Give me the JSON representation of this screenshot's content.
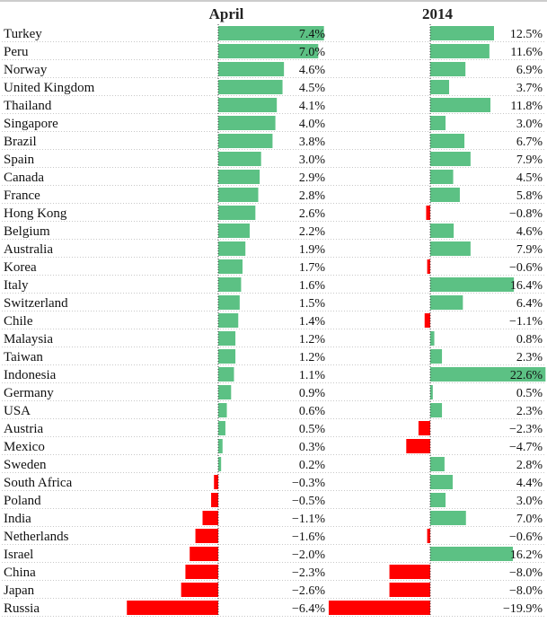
{
  "chart_data": {
    "type": "bar",
    "orientation": "horizontal",
    "panels": [
      "April",
      "2014"
    ],
    "categories": [
      "Turkey",
      "Peru",
      "Norway",
      "United Kingdom",
      "Thailand",
      "Singapore",
      "Brazil",
      "Spain",
      "Canada",
      "France",
      "Hong Kong",
      "Belgium",
      "Australia",
      "Korea",
      "Italy",
      "Switzerland",
      "Chile",
      "Malaysia",
      "Taiwan",
      "Indonesia",
      "Germany",
      "USA",
      "Austria",
      "Mexico",
      "Sweden",
      "South Africa",
      "Poland",
      "India",
      "Netherlands",
      "Israel",
      "China",
      "Japan",
      "Russia"
    ],
    "series": [
      {
        "name": "April",
        "values": [
          7.4,
          7.0,
          4.6,
          4.5,
          4.1,
          4.0,
          3.8,
          3.0,
          2.9,
          2.8,
          2.6,
          2.2,
          1.9,
          1.7,
          1.6,
          1.5,
          1.4,
          1.2,
          1.2,
          1.1,
          0.9,
          0.6,
          0.5,
          0.3,
          0.2,
          -0.3,
          -0.5,
          -1.1,
          -1.6,
          -2.0,
          -2.3,
          -2.6,
          -6.4
        ],
        "labels": [
          "7.4%",
          "7.0%",
          "4.6%",
          "4.5%",
          "4.1%",
          "4.0%",
          "3.8%",
          "3.0%",
          "2.9%",
          "2.8%",
          "2.6%",
          "2.2%",
          "1.9%",
          "1.7%",
          "1.6%",
          "1.5%",
          "1.4%",
          "1.2%",
          "1.2%",
          "1.1%",
          "0.9%",
          "0.6%",
          "0.5%",
          "0.3%",
          "0.2%",
          "−0.3%",
          "−0.5%",
          "−1.1%",
          "−1.6%",
          "−2.0%",
          "−2.3%",
          "−2.6%",
          "−6.4%"
        ]
      },
      {
        "name": "2014",
        "values": [
          12.5,
          11.6,
          6.9,
          3.7,
          11.8,
          3.0,
          6.7,
          7.9,
          4.5,
          5.8,
          -0.8,
          4.6,
          7.9,
          -0.6,
          16.4,
          6.4,
          -1.1,
          0.8,
          2.3,
          22.6,
          0.5,
          2.3,
          -2.3,
          -4.7,
          2.8,
          4.4,
          3.0,
          7.0,
          -0.6,
          16.2,
          -8.0,
          -8.0,
          -19.9
        ],
        "labels": [
          "12.5%",
          "11.6%",
          "6.9%",
          "3.7%",
          "11.8%",
          "3.0%",
          "6.7%",
          "7.9%",
          "4.5%",
          "5.8%",
          "−0.8%",
          "4.6%",
          "7.9%",
          "−0.6%",
          "16.4%",
          "6.4%",
          "−1.1%",
          "0.8%",
          "2.3%",
          "22.6%",
          "0.5%",
          "2.3%",
          "−2.3%",
          "−4.7%",
          "2.8%",
          "4.4%",
          "3.0%",
          "7.0%",
          "−0.6%",
          "16.2%",
          "−8.0%",
          "−8.0%",
          "−19.9%"
        ]
      }
    ],
    "colors": {
      "positive": "#5cc184",
      "negative": "#ff0000"
    },
    "grid": "dotted horizontal row separators"
  }
}
